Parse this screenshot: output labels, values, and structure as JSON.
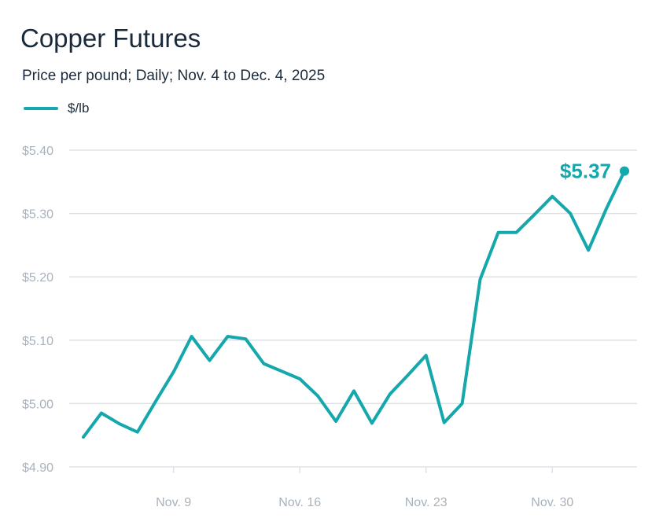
{
  "chart_data": {
    "type": "line",
    "title": "Copper Futures",
    "subtitle": "Price per pound; Daily; Nov. 4 to Dec. 4, 2025",
    "x": [
      "Nov. 4",
      "Nov. 5",
      "Nov. 6",
      "Nov. 7",
      "Nov. 8",
      "Nov. 9",
      "Nov. 10",
      "Nov. 11",
      "Nov. 12",
      "Nov. 13",
      "Nov. 14",
      "Nov. 15",
      "Nov. 16",
      "Nov. 17",
      "Nov. 18",
      "Nov. 19",
      "Nov. 20",
      "Nov. 21",
      "Nov. 22",
      "Nov. 23",
      "Nov. 24",
      "Nov. 25",
      "Nov. 26",
      "Nov. 27",
      "Nov. 28",
      "Nov. 29",
      "Nov. 30",
      "Dec. 1",
      "Dec. 2",
      "Dec. 3",
      "Dec. 4"
    ],
    "series": [
      {
        "name": "$/lb",
        "color": "#14a7ac",
        "values": [
          4.947,
          4.985,
          4.968,
          4.955,
          5.003,
          5.05,
          5.106,
          5.068,
          5.106,
          5.102,
          5.063,
          5.051,
          5.039,
          5.012,
          4.972,
          5.02,
          4.969,
          5.015,
          5.045,
          5.076,
          4.97,
          5.0,
          5.196,
          5.27,
          5.27,
          5.298,
          5.327,
          5.3,
          5.242,
          5.308,
          5.367
        ]
      }
    ],
    "end_label": "$5.37",
    "ylim": [
      4.9,
      5.4
    ],
    "y_ticks": [
      {
        "value": 5.4,
        "label": "$5.40"
      },
      {
        "value": 5.3,
        "label": "$5.30"
      },
      {
        "value": 5.2,
        "label": "$5.20"
      },
      {
        "value": 5.1,
        "label": "$5.10"
      },
      {
        "value": 5.0,
        "label": "$5.00"
      },
      {
        "value": 4.9,
        "label": "$4.90"
      }
    ],
    "x_ticks": [
      {
        "index": 5,
        "label": "Nov. 9"
      },
      {
        "index": 12,
        "label": "Nov. 16"
      },
      {
        "index": 19,
        "label": "Nov. 23"
      },
      {
        "index": 26,
        "label": "Nov. 30"
      }
    ],
    "grid": true,
    "legend": "top-left",
    "colors": {
      "line": "#14a7ac",
      "grid": "#dde2e7",
      "tick_text": "#a8b2bd",
      "text": "#1b2a3a"
    }
  }
}
